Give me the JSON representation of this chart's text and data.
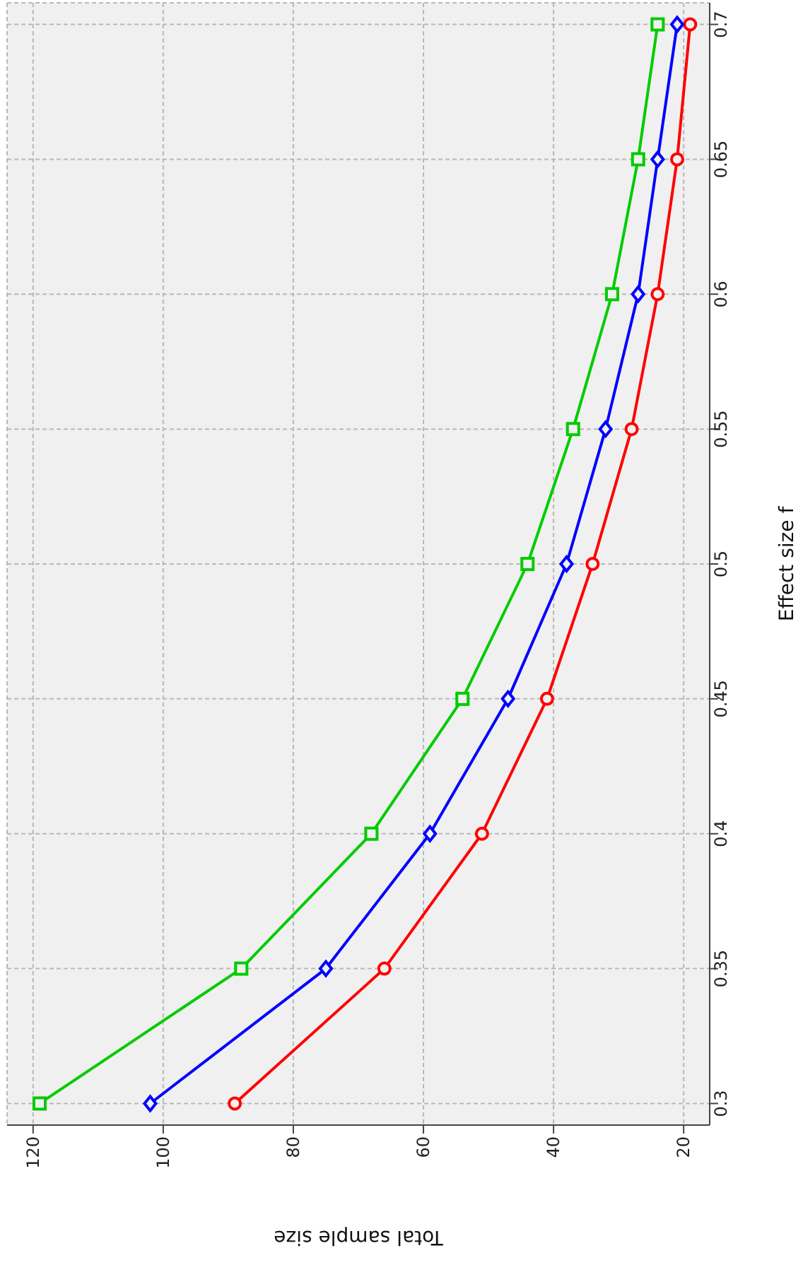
{
  "chart_data": {
    "type": "line",
    "xlabel": "Total sample size",
    "ylabel": "Effect size f",
    "series": [
      {
        "color": "#ff0000",
        "marker": "circle",
        "x": [
          89,
          66,
          51,
          41,
          34,
          28,
          24,
          21,
          19
        ],
        "values": [
          0.3,
          0.35,
          0.4,
          0.45,
          0.5,
          0.55,
          0.6,
          0.65,
          0.7
        ]
      },
      {
        "color": "#0000ff",
        "marker": "diamond",
        "x": [
          102,
          75,
          59,
          47,
          38,
          32,
          27,
          24,
          21
        ],
        "values": [
          0.3,
          0.35,
          0.4,
          0.45,
          0.5,
          0.55,
          0.6,
          0.65,
          0.7
        ]
      },
      {
        "color": "#00cc00",
        "marker": "square",
        "x": [
          119,
          88,
          68,
          54,
          44,
          37,
          31,
          27,
          24
        ],
        "values": [
          0.3,
          0.35,
          0.4,
          0.45,
          0.5,
          0.55,
          0.6,
          0.65,
          0.7
        ]
      }
    ],
    "xlim": [
      124,
      16
    ],
    "xticks": [
      120,
      100,
      80,
      60,
      40,
      20
    ],
    "ylim": [
      0.292,
      0.708
    ],
    "yticks": [
      0.3,
      0.35,
      0.4,
      0.45,
      0.5,
      0.55,
      0.6,
      0.65,
      0.7
    ],
    "grid": true,
    "line_style": "solid"
  }
}
